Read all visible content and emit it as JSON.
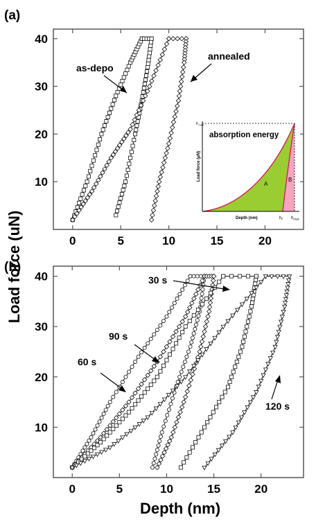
{
  "figure": {
    "shared_ylabel": "Load force (uN)",
    "shared_xlabel": "Depth (nm)"
  },
  "chart_data": [
    {
      "panel": "(a)",
      "type": "line",
      "xlim": [
        -2,
        24
      ],
      "ylim": [
        0,
        42
      ],
      "xticks": [
        0,
        5,
        10,
        15,
        20
      ],
      "yticks": [
        10,
        20,
        30,
        40
      ],
      "annotations": [
        {
          "text": "as-depo",
          "series": "as-depo"
        },
        {
          "text": "annealed",
          "series": "annealed"
        }
      ],
      "series": [
        {
          "name": "as-depo",
          "marker": "square",
          "loading": {
            "x": [
              0,
              1.5,
              3,
              4.5,
              6,
              7.2
            ],
            "y": [
              2,
              10,
              20,
              28,
              35,
              40
            ]
          },
          "unloading": {
            "x": [
              8.2,
              7.8,
              7.2,
              6.5,
              5.5,
              4.5
            ],
            "y": [
              40,
              34,
              27,
              20,
              10,
              3
            ]
          }
        },
        {
          "name": "annealed",
          "marker": "diamond",
          "loading": {
            "x": [
              0,
              2,
              4,
              6,
              8,
              10
            ],
            "y": [
              2,
              8,
              15,
              21,
              30,
              40
            ]
          },
          "unloading": {
            "x": [
              11.8,
              11.6,
              11,
              10,
              9,
              8.2
            ],
            "y": [
              40,
              35,
              27,
              18,
              10,
              2
            ]
          }
        }
      ],
      "inset": {
        "xlabel": "Depth (nm)",
        "ylabel": "Load force (μN)",
        "ymax_label": "F",
        "ymax_sub": "max",
        "xf_label": "h",
        "xf_sub": "f",
        "xmax_label": "h",
        "xmax_sub": "max",
        "title": "absorption energy",
        "region_a": "A",
        "region_b": "B",
        "colors": {
          "region_a": "#9acd32",
          "region_b": "#f4a6c0",
          "curve": "#d4145a"
        }
      }
    },
    {
      "panel": "(b)",
      "type": "line",
      "xlim": [
        -2,
        24.5
      ],
      "ylim": [
        0,
        42
      ],
      "xticks": [
        0,
        5,
        10,
        15,
        20
      ],
      "yticks": [
        10,
        20,
        30,
        40
      ],
      "annotations": [
        {
          "text": "30 s",
          "series": "30 s"
        },
        {
          "text": "60 s",
          "series": "60 s"
        },
        {
          "text": "90 s",
          "series": "90 s"
        },
        {
          "text": "120 s",
          "series": "120 s"
        }
      ],
      "series": [
        {
          "name": "60 s",
          "marker": "circle",
          "loading": {
            "x": [
              0,
              2,
              4,
              7,
              10,
              12.5
            ],
            "y": [
              2,
              8,
              15,
              24,
              32,
              40
            ]
          },
          "unloading": {
            "x": [
              14,
              13.5,
              12.5,
              11,
              9.5,
              8.5
            ],
            "y": [
              40,
              33,
              26,
              18,
              9,
              2
            ]
          }
        },
        {
          "name": "90 s",
          "marker": "diamond",
          "loading": {
            "x": [
              0,
              3,
              6,
              9,
              12,
              14
            ],
            "y": [
              2,
              8,
              15,
              23,
              32,
              40
            ]
          },
          "unloading": {
            "x": [
              15,
              14.5,
              13.5,
              12,
              10.5,
              9
            ],
            "y": [
              40,
              33,
              25,
              16,
              8,
              2
            ]
          }
        },
        {
          "name": "30 s",
          "marker": "square",
          "loading": {
            "x": [
              0,
              3,
              6,
              9,
              12,
              16
            ],
            "y": [
              2,
              7,
              13,
              20,
              30,
              40
            ]
          },
          "unloading": {
            "x": [
              19.5,
              19,
              18,
              16.5,
              14,
              11.5
            ],
            "y": [
              40,
              34,
              26,
              18,
              10,
              2
            ]
          }
        },
        {
          "name": "120 s",
          "marker": "triangle",
          "loading": {
            "x": [
              0,
              4,
              8,
              12,
              16,
              20.5
            ],
            "y": [
              2,
              6,
              12,
              20,
              30,
              40
            ]
          },
          "unloading": {
            "x": [
              23,
              22.5,
              21.5,
              19.5,
              17,
              14
            ],
            "y": [
              40,
              34,
              26,
              17,
              9,
              2
            ]
          }
        }
      ]
    }
  ]
}
